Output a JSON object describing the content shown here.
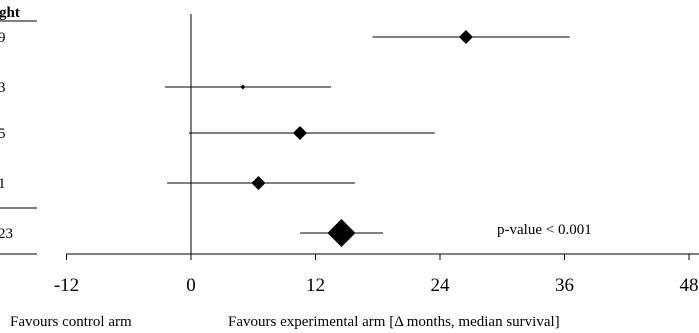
{
  "chart_data": {
    "type": "forest",
    "header_fragment": "ght",
    "rows": [
      {
        "weight_fragment": "9",
        "estimate": 26.5,
        "ci_low": 17.5,
        "ci_high": 36.5,
        "marker": "diamond-medium"
      },
      {
        "weight_fragment": "3",
        "estimate": 5,
        "ci_low": -2.5,
        "ci_high": 13.5,
        "marker": "dot-small"
      },
      {
        "weight_fragment": "5",
        "estimate": 10.5,
        "ci_low": -0.2,
        "ci_high": 23.5,
        "marker": "diamond-medium"
      },
      {
        "weight_fragment": "1",
        "estimate": 6.5,
        "ci_low": -2.3,
        "ci_high": 15.8,
        "marker": "diamond-medium"
      },
      {
        "weight_fragment": "23",
        "estimate": 14.5,
        "ci_low": 10.5,
        "ci_high": 18.5,
        "marker": "diamond-large",
        "summary": true
      }
    ],
    "x_ticks": [
      -12,
      0,
      12,
      24,
      36,
      48
    ],
    "xlim": [
      -12,
      48
    ],
    "reference_line": 0,
    "annotation": "p-value < 0.001",
    "left_caption": "Favours control arm",
    "right_caption": "Favours experimental arm [Δ months, median survival]"
  }
}
